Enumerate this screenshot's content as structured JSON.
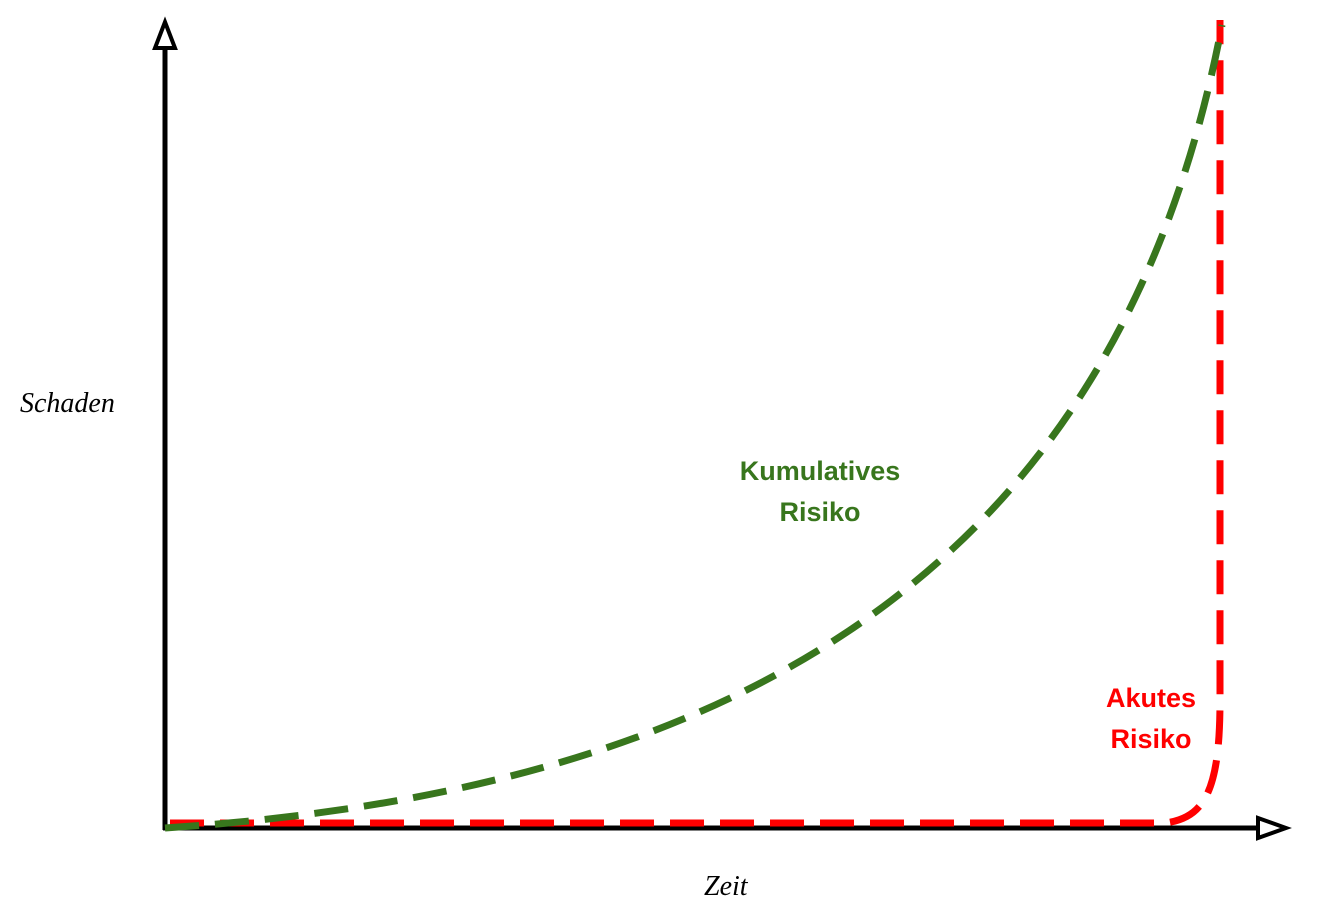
{
  "axes": {
    "y_label": "Schaden",
    "x_label": "Zeit"
  },
  "curves": [
    {
      "label_lines": [
        "Kumulatives",
        "Risiko"
      ]
    },
    {
      "label_lines": [
        "Akutes",
        "Risiko"
      ]
    }
  ]
}
